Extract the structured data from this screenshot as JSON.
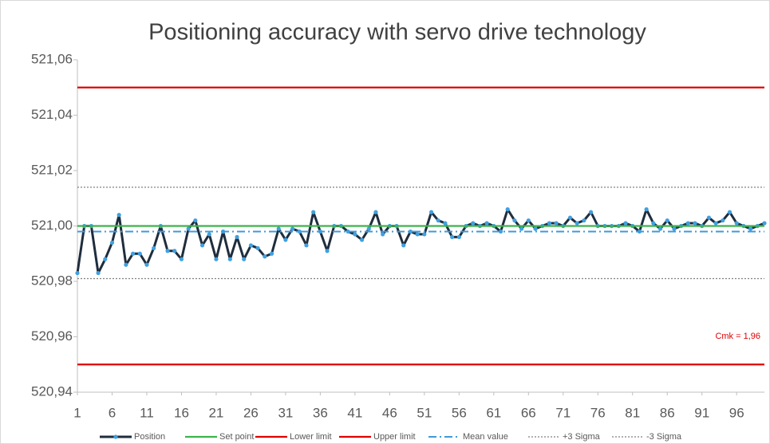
{
  "chart_data": {
    "type": "line",
    "title": "Positioning accuracy with servo drive technology",
    "annotation": "Cmk = 1,96",
    "x": [
      1,
      2,
      3,
      4,
      5,
      6,
      7,
      8,
      9,
      10,
      11,
      12,
      13,
      14,
      15,
      16,
      17,
      18,
      19,
      20,
      21,
      22,
      23,
      24,
      25,
      26,
      27,
      28,
      29,
      30,
      31,
      32,
      33,
      34,
      35,
      36,
      37,
      38,
      39,
      40,
      41,
      42,
      43,
      44,
      45,
      46,
      47,
      48,
      49,
      50,
      51,
      52,
      53,
      54,
      55,
      56,
      57,
      58,
      59,
      60,
      61,
      62,
      63,
      64,
      65,
      66,
      67,
      68,
      69,
      70,
      71,
      72,
      73,
      74,
      75,
      76,
      77,
      78,
      79,
      80,
      81,
      82,
      83,
      84,
      85,
      86,
      87,
      88,
      89,
      90,
      91,
      92,
      93,
      94,
      95,
      96,
      97,
      98,
      99,
      100
    ],
    "xlim": [
      1,
      100
    ],
    "xticks": [
      1,
      6,
      11,
      16,
      21,
      26,
      31,
      36,
      41,
      46,
      51,
      56,
      61,
      66,
      71,
      76,
      81,
      86,
      91,
      96
    ],
    "ylim": [
      520.94,
      521.06
    ],
    "yticks": [
      {
        "value": 520.94,
        "label": "520,94"
      },
      {
        "value": 520.96,
        "label": "520,96"
      },
      {
        "value": 520.98,
        "label": "520,98"
      },
      {
        "value": 521.0,
        "label": "521,00"
      },
      {
        "value": 521.02,
        "label": "521,02"
      },
      {
        "value": 521.04,
        "label": "521,04"
      },
      {
        "value": 521.06,
        "label": "521,06"
      }
    ],
    "series": [
      {
        "name": "Position",
        "color": "#1f2d3d",
        "marker_color": "#3fa0e0",
        "values": [
          520.983,
          521.0,
          521.0,
          520.983,
          520.988,
          520.994,
          521.004,
          520.986,
          520.99,
          520.99,
          520.986,
          520.992,
          521.0,
          520.991,
          520.991,
          520.988,
          520.999,
          521.002,
          520.993,
          520.997,
          520.988,
          520.998,
          520.988,
          520.996,
          520.988,
          520.993,
          520.992,
          520.989,
          520.99,
          520.999,
          520.995,
          520.999,
          520.998,
          520.993,
          521.005,
          520.998,
          520.991,
          521.0,
          521.0,
          520.998,
          520.997,
          520.995,
          520.999,
          521.005,
          520.997,
          521.0,
          521.0,
          520.993,
          520.998,
          520.997,
          520.997,
          521.005,
          521.002,
          521.001,
          520.996,
          520.996,
          521.0,
          521.001,
          521.0,
          521.001,
          521.0,
          520.998,
          521.006,
          521.002,
          520.999,
          521.002,
          520.999,
          521.0,
          521.001,
          521.001,
          521.0,
          521.003,
          521.001,
          521.002,
          521.005,
          521.0,
          521.0,
          521.0,
          521.0,
          521.001,
          521.0,
          520.998,
          521.006,
          521.001,
          520.999,
          521.002,
          520.999,
          521.0,
          521.001,
          521.001,
          521.0,
          521.003,
          521.001,
          521.002,
          521.005,
          521.001,
          521.0,
          520.999,
          521.0,
          521.001
        ]
      },
      {
        "name": "Set point",
        "color": "#3cb44a",
        "value": 521.0,
        "style": "solid"
      },
      {
        "name": "Lower limit",
        "color": "#e00000",
        "value": 520.95,
        "style": "solid"
      },
      {
        "name": "Upper limit",
        "color": "#e00000",
        "value": 521.05,
        "style": "solid"
      },
      {
        "name": "Mean value",
        "color": "#3f9ad8",
        "value": 520.998,
        "style": "dashdot"
      },
      {
        "name": "+3 Sigma",
        "color": "#808080",
        "value": 521.014,
        "style": "dotted"
      },
      {
        "name": "-3 Sigma",
        "color": "#808080",
        "value": 520.981,
        "style": "dotted"
      }
    ],
    "legend": "bottom"
  }
}
